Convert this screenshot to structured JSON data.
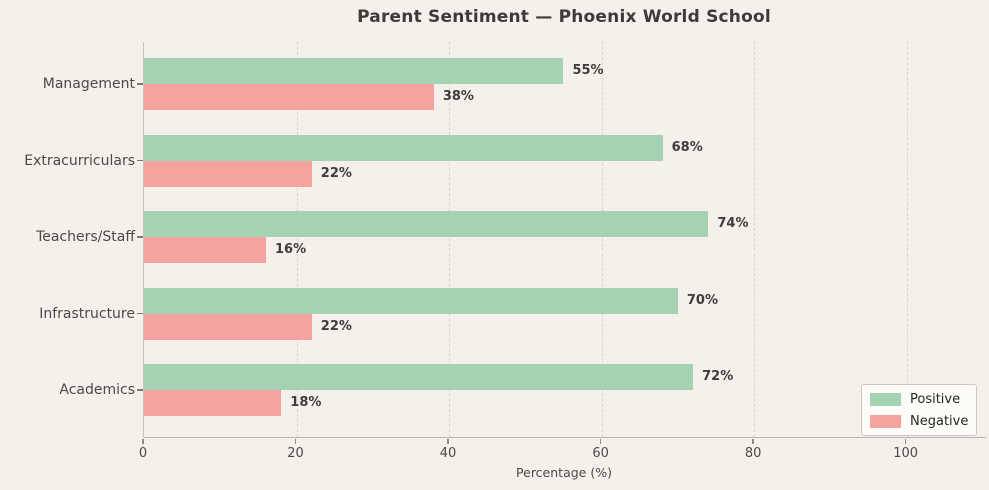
{
  "chart_data": {
    "type": "bar",
    "orientation": "horizontal",
    "title": "Parent Sentiment — Phoenix World School",
    "xlabel": "Percentage (%)",
    "categories": [
      "Management",
      "Extracurriculars",
      "Teachers/Staff",
      "Infrastructure",
      "Academics"
    ],
    "series": [
      {
        "name": "Positive",
        "color": "#a6d2b4",
        "values": [
          55,
          68,
          74,
          70,
          72
        ]
      },
      {
        "name": "Negative",
        "color": "#f4a39e",
        "values": [
          38,
          22,
          16,
          22,
          18
        ]
      }
    ],
    "value_labels": {
      "Positive": [
        "55%",
        "68%",
        "74%",
        "70%",
        "72%"
      ],
      "Negative": [
        "38%",
        "22%",
        "16%",
        "22%",
        "18%"
      ]
    },
    "value_label_format": "{v}%",
    "xticks": [
      0,
      20,
      40,
      60,
      80,
      100
    ],
    "xlim": [
      0,
      110.4
    ],
    "grid": "vertical-dashed",
    "legend_position": "lower right",
    "legend": [
      "Positive",
      "Negative"
    ]
  },
  "colors": {
    "background": "#f5f0ea",
    "positive_bar": "#a6d2b4",
    "negative_bar": "#f4a39e",
    "title_text": "#3b3b3b",
    "axis_text": "#4a4a4a",
    "value_text": "#3d3d3d",
    "gridline": "#d9d5d0",
    "legend_background": "#fdfcf9",
    "legend_border": "#ccc9c3"
  }
}
